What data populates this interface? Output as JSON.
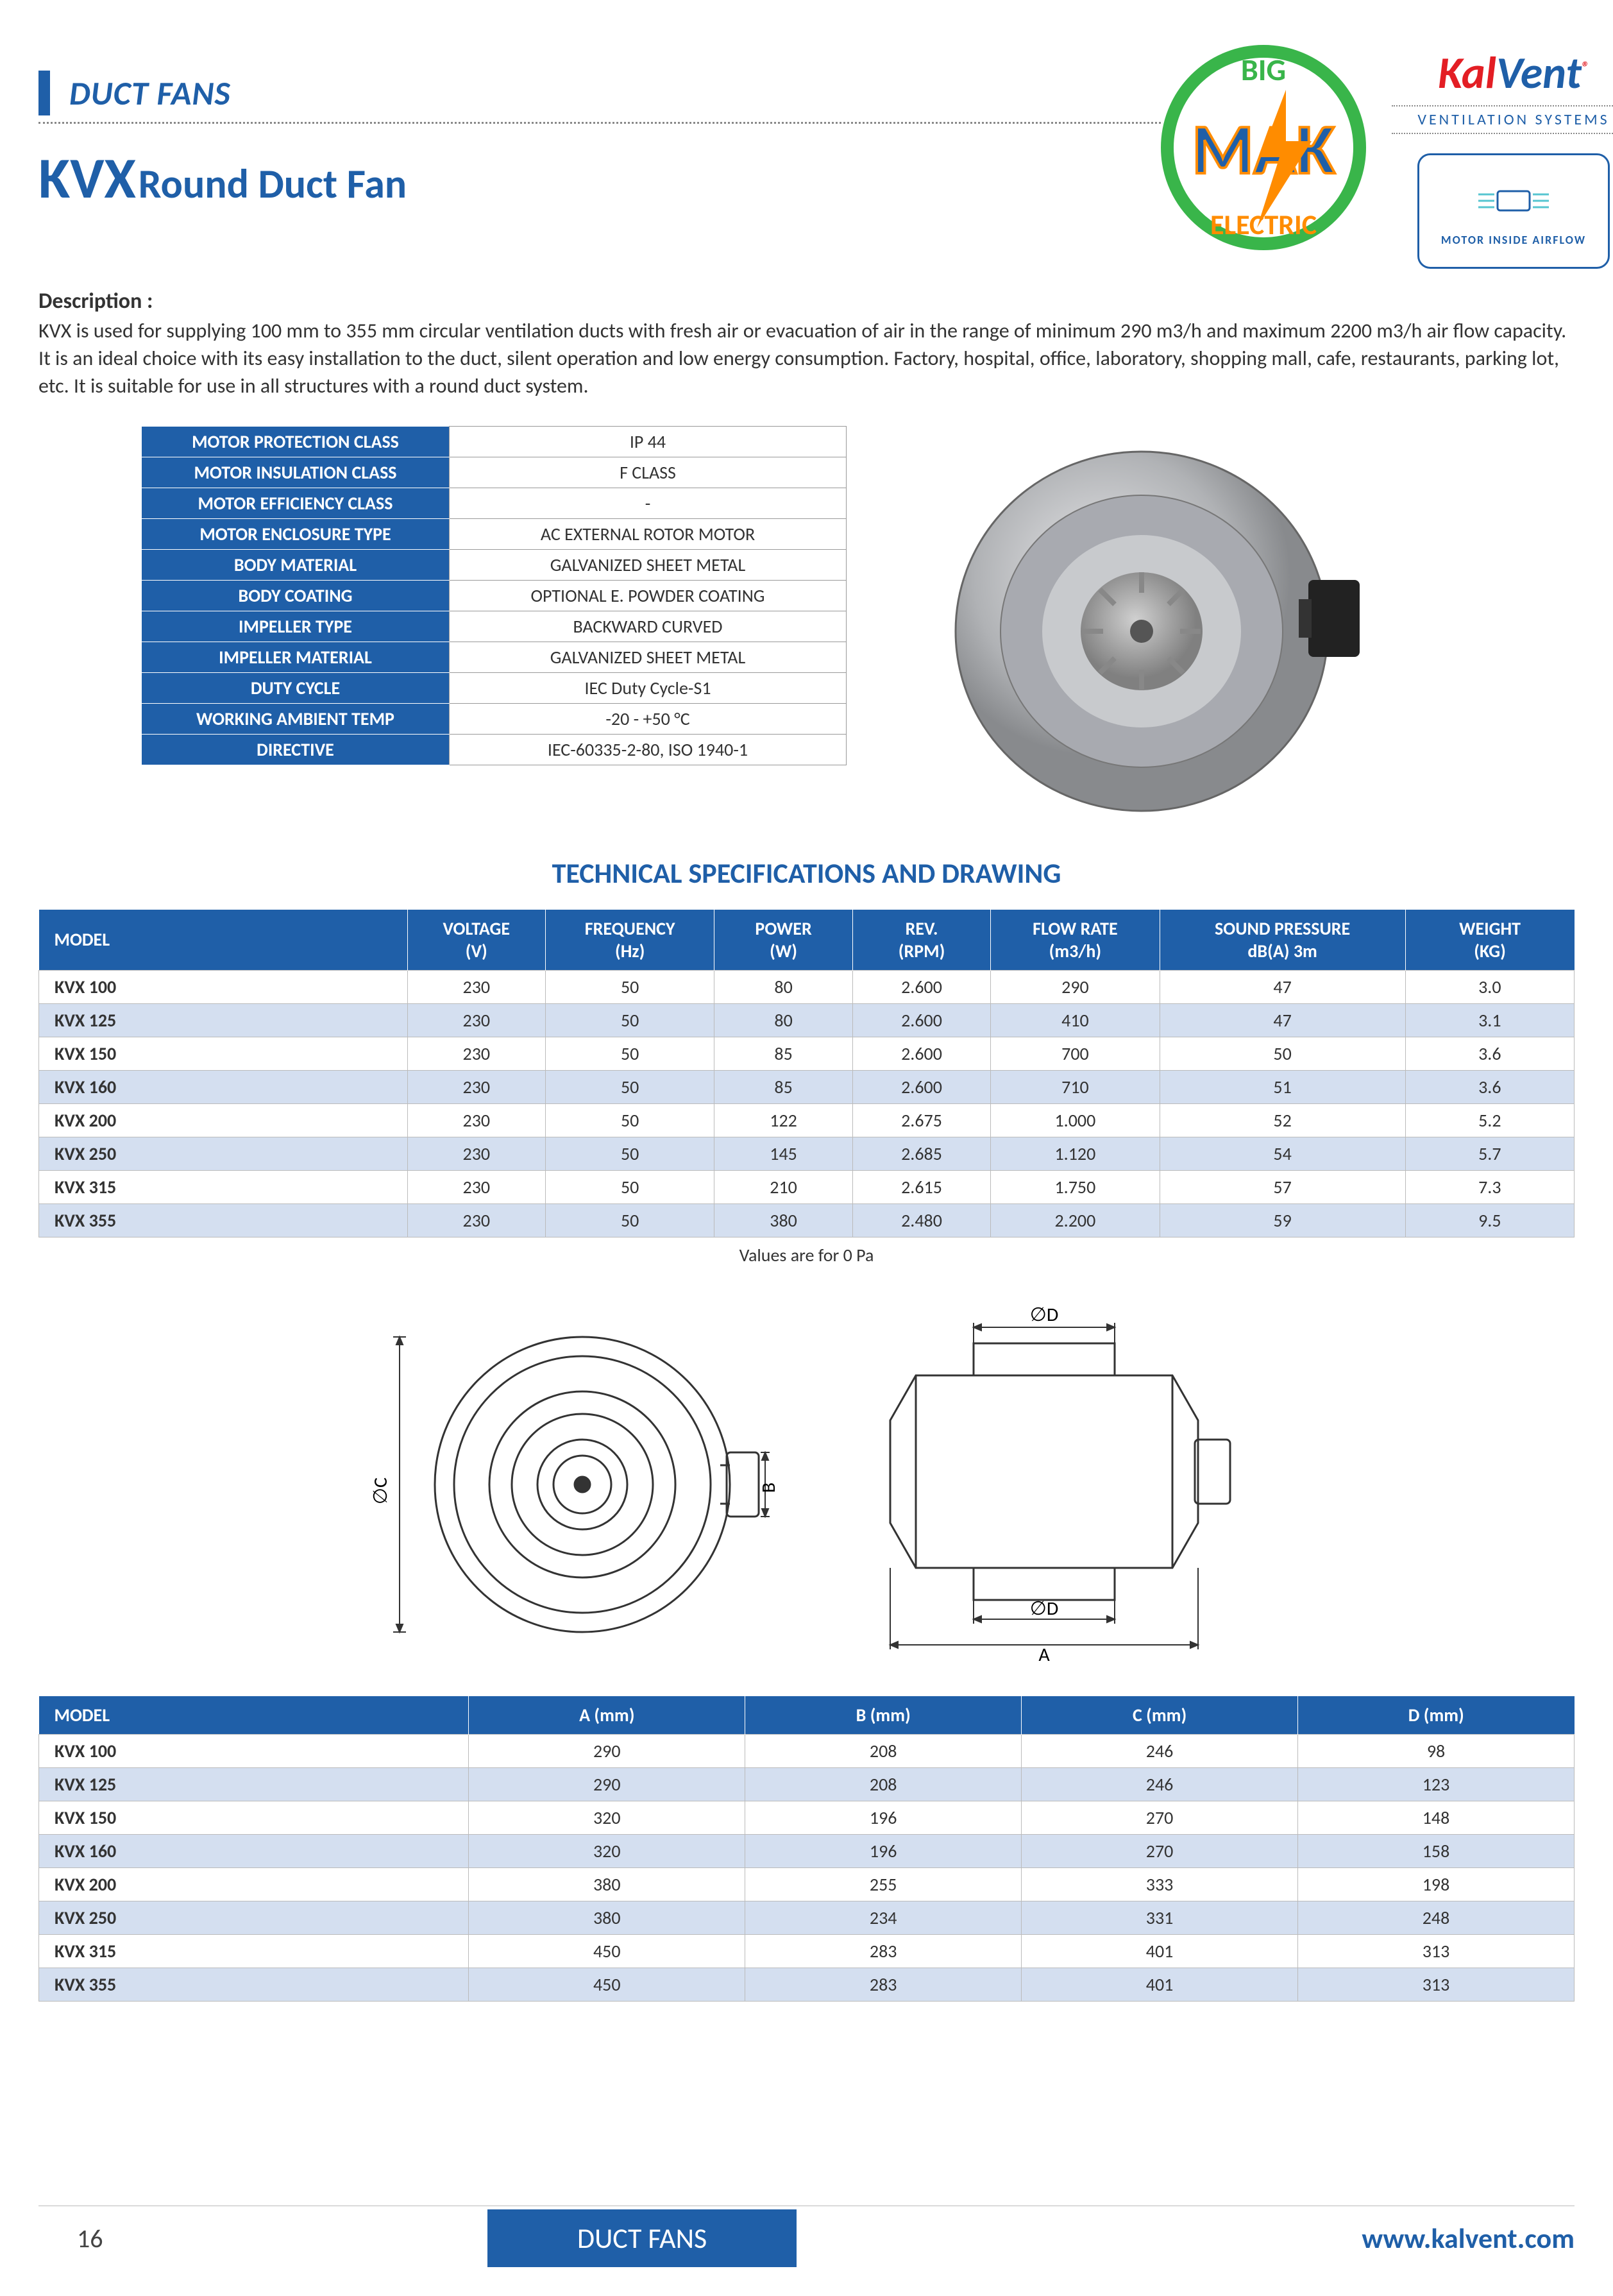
{
  "colors": {
    "brand_blue": "#1f5fa8",
    "brand_red": "#e31e24",
    "row_alt": "#d4dff0",
    "border": "#bbbbbb",
    "text": "#333333"
  },
  "header": {
    "section_title": "DUCT FANS",
    "brand_name_1": "Kal",
    "brand_name_2": "Vent",
    "brand_sub": "VENTILATION SYSTEMS",
    "motor_badge": "MOTOR INSIDE AIRFLOW",
    "mak_top": "BIG",
    "mak_mid": "MAK",
    "mak_bottom": "ELECTRIC"
  },
  "product": {
    "code": "KVX",
    "name": "Round Duct Fan",
    "desc_label": "Description :",
    "desc_text": "KVX is used for supplying 100 mm to 355 mm circular ventilation ducts with fresh air or evacuation of air in the range of minimum 290 m3/h and maximum 2200 m3/h air flow capacity. It is an ideal choice with its easy installation to the duct, silent operation and low energy consumption. Factory, hospital, office, laboratory, shopping mall, cafe, restaurants, parking lot, etc. It is suitable for use in all structures with a round duct system."
  },
  "spec_table": {
    "rows": [
      {
        "label": "MOTOR PROTECTION CLASS",
        "value": "IP 44"
      },
      {
        "label": "MOTOR INSULATION CLASS",
        "value": "F CLASS"
      },
      {
        "label": "MOTOR EFFICIENCY CLASS",
        "value": "-"
      },
      {
        "label": "MOTOR ENCLOSURE TYPE",
        "value": "AC EXTERNAL ROTOR MOTOR"
      },
      {
        "label": "BODY MATERIAL",
        "value": "GALVANIZED SHEET METAL"
      },
      {
        "label": "BODY COATING",
        "value": "OPTIONAL E. POWDER COATING"
      },
      {
        "label": "IMPELLER TYPE",
        "value": "BACKWARD CURVED"
      },
      {
        "label": "IMPELLER MATERIAL",
        "value": "GALVANIZED SHEET METAL"
      },
      {
        "label": "DUTY CYCLE",
        "value": "IEC Duty Cycle-S1"
      },
      {
        "label": "WORKING AMBIENT TEMP",
        "value": "-20 - +50 °C"
      },
      {
        "label": "DIRECTIVE",
        "value": "IEC-60335-2-80, ISO 1940-1"
      }
    ]
  },
  "tech_heading": "TECHNICAL SPECIFICATIONS AND DRAWING",
  "tech_table": {
    "columns": [
      {
        "l1": "MODEL",
        "l2": ""
      },
      {
        "l1": "VOLTAGE",
        "l2": "(V)"
      },
      {
        "l1": "FREQUENCY",
        "l2": "(Hz)"
      },
      {
        "l1": "POWER",
        "l2": "(W)"
      },
      {
        "l1": "REV.",
        "l2": "(RPM)"
      },
      {
        "l1": "FLOW RATE",
        "l2": "(m3/h)"
      },
      {
        "l1": "SOUND PRESSURE",
        "l2": "dB(A) 3m"
      },
      {
        "l1": "WEIGHT",
        "l2": "(KG)"
      }
    ],
    "rows": [
      [
        "KVX 100",
        "230",
        "50",
        "80",
        "2.600",
        "290",
        "47",
        "3.0"
      ],
      [
        "KVX 125",
        "230",
        "50",
        "80",
        "2.600",
        "410",
        "47",
        "3.1"
      ],
      [
        "KVX 150",
        "230",
        "50",
        "85",
        "2.600",
        "700",
        "50",
        "3.6"
      ],
      [
        "KVX 160",
        "230",
        "50",
        "85",
        "2.600",
        "710",
        "51",
        "3.6"
      ],
      [
        "KVX 200",
        "230",
        "50",
        "122",
        "2.675",
        "1.000",
        "52",
        "5.2"
      ],
      [
        "KVX 250",
        "230",
        "50",
        "145",
        "2.685",
        "1.120",
        "54",
        "5.7"
      ],
      [
        "KVX 315",
        "230",
        "50",
        "210",
        "2.615",
        "1.750",
        "57",
        "7.3"
      ],
      [
        "KVX 355",
        "230",
        "50",
        "380",
        "2.480",
        "2.200",
        "59",
        "9.5"
      ]
    ],
    "note": "Values are for 0 Pa",
    "col_widths": [
      "24%",
      "9%",
      "11%",
      "9%",
      "9%",
      "11%",
      "16%",
      "11%"
    ]
  },
  "drawing": {
    "labels": {
      "diaC": "∅C",
      "diaD": "∅D",
      "A": "A",
      "B": "B"
    }
  },
  "dim_table": {
    "columns": [
      "MODEL",
      "A (mm)",
      "B (mm)",
      "C (mm)",
      "D (mm)"
    ],
    "rows": [
      [
        "KVX 100",
        "290",
        "208",
        "246",
        "98"
      ],
      [
        "KVX 125",
        "290",
        "208",
        "246",
        "123"
      ],
      [
        "KVX 150",
        "320",
        "196",
        "270",
        "148"
      ],
      [
        "KVX 160",
        "320",
        "196",
        "270",
        "158"
      ],
      [
        "KVX 200",
        "380",
        "255",
        "333",
        "198"
      ],
      [
        "KVX 250",
        "380",
        "234",
        "331",
        "248"
      ],
      [
        "KVX 315",
        "450",
        "283",
        "401",
        "313"
      ],
      [
        "KVX 355",
        "450",
        "283",
        "401",
        "313"
      ]
    ],
    "col_widths": [
      "28%",
      "18%",
      "18%",
      "18%",
      "18%"
    ]
  },
  "footer": {
    "page": "16",
    "tab": "DUCT FANS",
    "url": "www.kalvent.com"
  }
}
